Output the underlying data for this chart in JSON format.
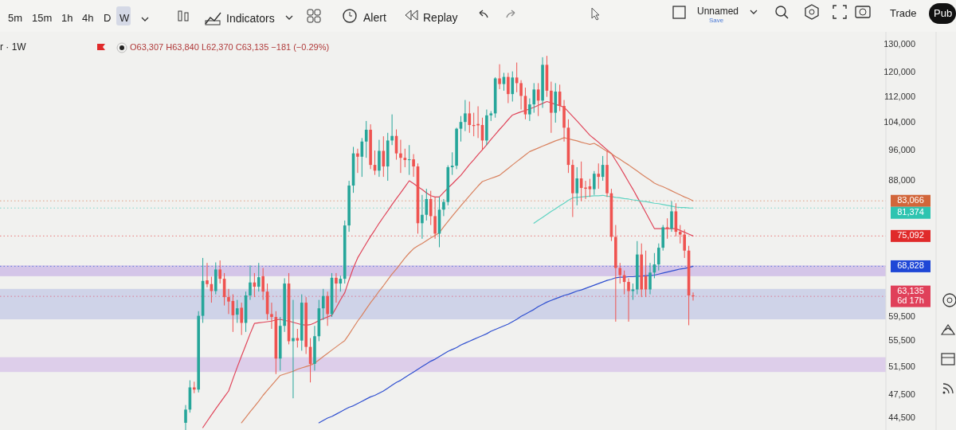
{
  "chart_data": {
    "type": "candlestick",
    "title": "r · 1W",
    "annotations": [
      "5m",
      "15m",
      "1h",
      "4h",
      "D",
      "W",
      "Indicators",
      "Alert",
      "Replay",
      "Unnamed",
      "Save",
      "Trade",
      "Pub",
      "O63,307 H63,840 L62,370 C63,135 −181 (−0.29%)"
    ],
    "categories": [
      null,
      null,
      null,
      null,
      null,
      null,
      null,
      null,
      null,
      null,
      null,
      null,
      null,
      null,
      null,
      null,
      null,
      null,
      null,
      null,
      null,
      null,
      null,
      null,
      null,
      null,
      null,
      null,
      null,
      null,
      null,
      null,
      null,
      null,
      null,
      null,
      null,
      null,
      null,
      null,
      null,
      null,
      null,
      null,
      null,
      null,
      null,
      null,
      null,
      null,
      null,
      null,
      null,
      null,
      null,
      null,
      null,
      null,
      null,
      null,
      null,
      null,
      null,
      null,
      null,
      null,
      null,
      null,
      null,
      null,
      null,
      null,
      null,
      null,
      null,
      null,
      null,
      null,
      null,
      null,
      null,
      null,
      null,
      null,
      null,
      null,
      null,
      null,
      null,
      null,
      null,
      null,
      null,
      null,
      null,
      null,
      null,
      null,
      null,
      null,
      null,
      null,
      null,
      null,
      null,
      null,
      null,
      null,
      null,
      null,
      null,
      null,
      null,
      null,
      null,
      null,
      null,
      null,
      null
    ],
    "ohlc": [
      [
        43900,
        46200,
        43000,
        45600
      ],
      [
        45600,
        49600,
        45200,
        48600
      ],
      [
        48600,
        49400,
        47800,
        48300
      ],
      [
        48300,
        60500,
        47900,
        59700
      ],
      [
        59700,
        70500,
        58500,
        66000
      ],
      [
        66100,
        69500,
        64800,
        65400
      ],
      [
        65400,
        66800,
        62000,
        64100
      ],
      [
        64100,
        69600,
        63500,
        68200
      ],
      [
        68200,
        70000,
        65500,
        66400
      ],
      [
        66400,
        67500,
        61500,
        63000
      ],
      [
        63000,
        64500,
        60000,
        62200
      ],
      [
        62300,
        63500,
        57000,
        59800
      ],
      [
        59900,
        62500,
        58500,
        61000
      ],
      [
        61100,
        62000,
        56500,
        58500
      ],
      [
        58500,
        64000,
        57000,
        63300
      ],
      [
        63300,
        69000,
        62500,
        65700
      ],
      [
        65700,
        67500,
        63000,
        64900
      ],
      [
        64900,
        69500,
        64000,
        66700
      ],
      [
        66900,
        68500,
        62500,
        64000
      ],
      [
        64000,
        65500,
        59000,
        60000
      ],
      [
        60000,
        62000,
        57500,
        59500
      ],
      [
        59500,
        60500,
        50500,
        52800
      ],
      [
        52800,
        59500,
        51000,
        58000
      ],
      [
        58000,
        66500,
        57000,
        65500
      ],
      [
        65500,
        67500,
        55000,
        55500
      ],
      [
        55500,
        62500,
        47100,
        56000
      ],
      [
        56000,
        57500,
        54500,
        55600
      ],
      [
        55600,
        63500,
        54000,
        62000
      ],
      [
        62000,
        63000,
        53500,
        54600
      ],
      [
        54600,
        56000,
        49300,
        52000
      ],
      [
        52000,
        58000,
        51000,
        56300
      ],
      [
        56300,
        62500,
        55500,
        61000
      ],
      [
        61000,
        64500,
        59000,
        63200
      ],
      [
        63200,
        64000,
        58000,
        60000
      ],
      [
        60000,
        67500,
        59500,
        66600
      ],
      [
        66600,
        67500,
        62000,
        65500
      ],
      [
        65500,
        67000,
        64000,
        66400
      ],
      [
        66400,
        78500,
        65500,
        77400
      ],
      [
        77400,
        88000,
        76000,
        86800
      ],
      [
        86800,
        97000,
        85000,
        95200
      ],
      [
        95200,
        96500,
        90000,
        94300
      ],
      [
        94300,
        99500,
        89000,
        98500
      ],
      [
        98500,
        104500,
        94000,
        101900
      ],
      [
        101900,
        103500,
        91000,
        92100
      ],
      [
        92100,
        96000,
        89500,
        90600
      ],
      [
        90600,
        99000,
        89000,
        95900
      ],
      [
        95900,
        100000,
        89000,
        91700
      ],
      [
        91700,
        101000,
        88000,
        98800
      ],
      [
        98800,
        106500,
        97500,
        100100
      ],
      [
        100100,
        102000,
        93500,
        95200
      ],
      [
        95200,
        99000,
        90000,
        94000
      ],
      [
        94000,
        96500,
        91500,
        93400
      ],
      [
        93400,
        97500,
        89500,
        93600
      ],
      [
        93600,
        95000,
        89000,
        91700
      ],
      [
        91700,
        92500,
        75600,
        77900
      ],
      [
        77900,
        84500,
        74500,
        79800
      ],
      [
        79800,
        86000,
        78500,
        83500
      ],
      [
        83500,
        85500,
        77500,
        79500
      ],
      [
        79500,
        84000,
        74500,
        75600
      ],
      [
        75600,
        84000,
        72700,
        81000
      ],
      [
        81000,
        83500,
        79500,
        82800
      ],
      [
        82800,
        92000,
        82000,
        91500
      ],
      [
        91500,
        95500,
        89500,
        91900
      ],
      [
        91900,
        102500,
        91000,
        102200
      ],
      [
        102200,
        106000,
        98500,
        104200
      ],
      [
        104200,
        111000,
        101500,
        106800
      ],
      [
        106800,
        110500,
        101000,
        103300
      ],
      [
        103300,
        107000,
        100000,
        103000
      ],
      [
        103600,
        109000,
        99500,
        103200
      ],
      [
        103300,
        105500,
        96000,
        98800
      ],
      [
        98800,
        108000,
        97500,
        106200
      ],
      [
        106200,
        107500,
        104500,
        106800
      ],
      [
        106800,
        118500,
        105500,
        118100
      ],
      [
        118100,
        123000,
        114500,
        116200
      ],
      [
        116200,
        120000,
        114000,
        118600
      ],
      [
        118600,
        120000,
        110000,
        112900
      ],
      [
        112900,
        120500,
        110500,
        118400
      ],
      [
        118400,
        123600,
        113500,
        116500
      ],
      [
        116500,
        117500,
        108000,
        112300
      ],
      [
        112300,
        115000,
        105000,
        106500
      ],
      [
        106500,
        111500,
        104500,
        109600
      ],
      [
        109600,
        116500,
        107000,
        114400
      ],
      [
        114400,
        116500,
        106000,
        110800
      ],
      [
        110800,
        125500,
        108500,
        122800
      ],
      [
        122800,
        126000,
        112000,
        114000
      ],
      [
        114000,
        117000,
        101000,
        107000
      ],
      [
        107000,
        116500,
        104000,
        113700
      ],
      [
        113700,
        116000,
        107500,
        109100
      ],
      [
        109100,
        111000,
        98500,
        102500
      ],
      [
        102500,
        105000,
        90000,
        92100
      ],
      [
        92100,
        93500,
        79300,
        84900
      ],
      [
        84900,
        91500,
        82000,
        88600
      ],
      [
        88600,
        93000,
        83000,
        86200
      ],
      [
        86300,
        88000,
        83500,
        86000
      ],
      [
        86600,
        88500,
        84000,
        85900
      ],
      [
        85900,
        90500,
        84500,
        89800
      ],
      [
        89800,
        92500,
        86000,
        89000
      ],
      [
        89000,
        94500,
        88000,
        92100
      ],
      [
        92100,
        96000,
        84000,
        84900
      ],
      [
        84900,
        86000,
        74000,
        74900
      ],
      [
        74900,
        77500,
        58700,
        68500
      ],
      [
        68500,
        69500,
        65500,
        67100
      ],
      [
        67100,
        68000,
        63500,
        65800
      ],
      [
        65800,
        66500,
        58700,
        64100
      ],
      [
        64100,
        65500,
        62500,
        64400
      ],
      [
        64400,
        74000,
        63500,
        71200
      ],
      [
        71200,
        73500,
        63000,
        64400
      ],
      [
        66900,
        72000,
        63000,
        64400
      ],
      [
        64400,
        69500,
        63500,
        67600
      ],
      [
        67600,
        71500,
        66500,
        69200
      ],
      [
        69200,
        73500,
        68000,
        72600
      ],
      [
        72600,
        77500,
        72000,
        77000
      ],
      [
        77000,
        79000,
        74500,
        76700
      ],
      [
        76700,
        83000,
        76000,
        80600
      ],
      [
        80600,
        82500,
        75000,
        76000
      ],
      [
        76000,
        77500,
        73500,
        75400
      ],
      [
        75400,
        76500,
        70500,
        72000
      ],
      [
        72000,
        73000,
        58100,
        63300
      ],
      [
        63307,
        63840,
        62370,
        63135
      ]
    ],
    "series": [
      {
        "type": "line",
        "color": "#e0455a",
        "values": [
          null,
          null,
          null,
          null,
          43300,
          44100,
          44900,
          45700,
          46500,
          47300,
          48100,
          49800,
          51500,
          53200,
          54900,
          56700,
          58400,
          58500,
          58600,
          58700,
          58800,
          59000,
          59100,
          58900,
          58800,
          58600,
          58400,
          58200,
          58100,
          58200,
          58500,
          58900,
          59200,
          59500,
          59800,
          61100,
          62500,
          63800,
          66200,
          68500,
          70500,
          72000,
          73500,
          75000,
          76400,
          77900,
          79300,
          80700,
          82200,
          83600,
          85000,
          86500,
          88000,
          87300,
          86500,
          85800,
          85000,
          84300,
          84000,
          84000,
          85100,
          86200,
          87200,
          88300,
          89400,
          90800,
          92200,
          93500,
          94900,
          96200,
          97600,
          99100,
          100500,
          102000,
          103400,
          104900,
          106300,
          106800,
          107300,
          107700,
          108200,
          108700,
          109300,
          109900,
          110500,
          110100,
          109600,
          109200,
          108700,
          107300,
          105900,
          104500,
          103100,
          101700,
          100300,
          99300,
          98300,
          97200,
          96200,
          95200,
          93300,
          91500,
          89600,
          87700,
          85900,
          84000,
          82200,
          80300,
          78500,
          76700,
          76700,
          76700,
          76700,
          76700,
          76700,
          76300,
          75900,
          75500,
          75092
        ]
      },
      {
        "type": "line",
        "color": "#d9825f",
        "values": [
          null,
          null,
          null,
          null,
          null,
          null,
          null,
          null,
          null,
          null,
          null,
          null,
          null,
          43900,
          44600,
          45300,
          46000,
          46700,
          47500,
          48200,
          48900,
          49600,
          50300,
          50500,
          50700,
          50900,
          51200,
          51400,
          51600,
          51800,
          52100,
          52600,
          53100,
          53600,
          54100,
          54600,
          55100,
          55600,
          56600,
          57700,
          58800,
          59800,
          60900,
          62000,
          63000,
          64100,
          65100,
          66200,
          67300,
          68300,
          69400,
          70500,
          71500,
          72400,
          73000,
          73500,
          74100,
          74700,
          75200,
          75800,
          77100,
          78300,
          79500,
          80700,
          81900,
          83100,
          84300,
          85500,
          86700,
          87800,
          88200,
          88600,
          89000,
          89400,
          90300,
          91200,
          92100,
          93000,
          93900,
          94800,
          95700,
          96200,
          96700,
          97200,
          97700,
          98200,
          98700,
          99100,
          99600,
          99300,
          99000,
          98700,
          98300,
          98000,
          97700,
          98000,
          97300,
          96500,
          95800,
          95100,
          94300,
          93600,
          92800,
          92100,
          91300,
          90500,
          89700,
          88900,
          88200,
          87400,
          86900,
          86500,
          86000,
          85500,
          85000,
          84500,
          84000,
          83600,
          83066
        ]
      },
      {
        "type": "line",
        "color": "#5fd3c2",
        "values": [
          null,
          null,
          null,
          null,
          null,
          null,
          null,
          null,
          null,
          null,
          null,
          null,
          null,
          null,
          null,
          null,
          null,
          null,
          null,
          null,
          null,
          null,
          null,
          null,
          null,
          null,
          null,
          null,
          null,
          null,
          null,
          null,
          null,
          null,
          null,
          null,
          null,
          null,
          null,
          null,
          null,
          null,
          null,
          null,
          null,
          null,
          null,
          null,
          null,
          null,
          null,
          null,
          null,
          null,
          null,
          null,
          null,
          null,
          null,
          null,
          null,
          null,
          null,
          null,
          null,
          null,
          null,
          null,
          null,
          null,
          null,
          null,
          null,
          null,
          null,
          null,
          null,
          null,
          null,
          null,
          null,
          77900,
          78600,
          79200,
          79900,
          80600,
          81200,
          81900,
          82500,
          83200,
          83800,
          83900,
          84000,
          84100,
          84200,
          84300,
          84300,
          84400,
          84200,
          84100,
          83900,
          83800,
          83600,
          83500,
          83300,
          83200,
          83000,
          82900,
          82700,
          82500,
          82400,
          82200,
          82000,
          81800,
          81600,
          81500,
          81500,
          81400,
          81374
        ]
      },
      {
        "type": "line",
        "color": "#2f4fd0",
        "values": [
          null,
          null,
          null,
          null,
          null,
          null,
          null,
          null,
          null,
          null,
          null,
          null,
          null,
          null,
          null,
          null,
          null,
          null,
          null,
          null,
          null,
          null,
          null,
          null,
          null,
          null,
          null,
          null,
          null,
          null,
          null,
          43900,
          44200,
          44500,
          44700,
          45000,
          45300,
          45600,
          45900,
          46100,
          46400,
          46700,
          47000,
          47300,
          47500,
          47800,
          48100,
          48500,
          48900,
          49300,
          49600,
          50000,
          50400,
          50800,
          51200,
          51600,
          52000,
          52400,
          52700,
          53100,
          53500,
          53900,
          54200,
          54500,
          54900,
          55200,
          55500,
          55800,
          56100,
          56400,
          56700,
          57100,
          57400,
          57700,
          58000,
          58300,
          58700,
          59100,
          59600,
          60000,
          60400,
          60800,
          61300,
          61700,
          62100,
          62400,
          62700,
          63000,
          63300,
          63500,
          63800,
          64100,
          64300,
          64600,
          64900,
          65200,
          65500,
          65800,
          66100,
          66300,
          66600,
          66700,
          66700,
          66800,
          66800,
          66900,
          66900,
          67000,
          67000,
          67100,
          67300,
          67500,
          67700,
          67900,
          68100,
          68300,
          68400,
          68600,
          68828
        ]
      }
    ],
    "ylim": [
      43000,
      135000
    ],
    "log": true,
    "yticks": [
      {
        "value": 44500,
        "label": "44,500"
      },
      {
        "value": 47500,
        "label": "47,500"
      },
      {
        "value": 51500,
        "label": "51,500"
      },
      {
        "value": 55500,
        "label": "55,500"
      },
      {
        "value": 59500,
        "label": "59,500"
      },
      {
        "value": 88000,
        "label": "88,000"
      },
      {
        "value": 96000,
        "label": "96,000"
      },
      {
        "value": 104000,
        "label": "104,000"
      },
      {
        "value": 112000,
        "label": "112,000"
      },
      {
        "value": 120000,
        "label": "120,000"
      },
      {
        "value": 130000,
        "label": "130,000"
      }
    ],
    "tick_labels": "y",
    "bands": [
      {
        "axis": "y",
        "from": 66900,
        "to": 69000,
        "color": "#c9b6e6"
      },
      {
        "axis": "y",
        "from": 59100,
        "to": 64500,
        "color": "#c3c8e6"
      },
      {
        "axis": "y",
        "from": 50800,
        "to": 53000,
        "color": "#d6c2e8"
      }
    ],
    "ref_lines": [
      {
        "axis": "y",
        "value": 83066,
        "label": "83,066",
        "color": "#d2663a",
        "line_style": "dotted"
      },
      {
        "axis": "y",
        "value": 81374,
        "label": "81,374",
        "color": "#2ec4b0",
        "line_style": "dotted"
      },
      {
        "axis": "y",
        "value": 75092,
        "label": "75,092",
        "color": "#e02a2a",
        "line_style": "dotted"
      },
      {
        "axis": "y",
        "value": 68828,
        "label": "68,828",
        "color": "#1f47d6",
        "line_style": "dotted"
      },
      {
        "axis": "y",
        "value": 63135,
        "label": "63,135\n6d 17h",
        "color": "#e0405a",
        "line_style": "dotted"
      }
    ]
  }
}
